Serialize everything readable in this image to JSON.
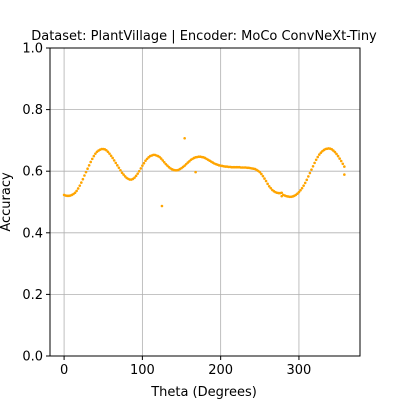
{
  "chart_data": {
    "type": "scatter",
    "title": "Dataset: PlantVillage | Encoder: MoCo ConvNeXt-Tiny",
    "xlabel": "Theta (Degrees)",
    "ylabel": "Accuracy",
    "xlim": [
      -18,
      378
    ],
    "ylim": [
      0.0,
      1.0
    ],
    "xticks": [
      0,
      100,
      200,
      300
    ],
    "yticks": [
      0.0,
      0.2,
      0.4,
      0.6,
      0.8,
      1.0
    ],
    "xtick_labels": [
      "0",
      "100",
      "200",
      "300"
    ],
    "ytick_labels": [
      "0.0",
      "0.2",
      "0.4",
      "0.6",
      "0.8",
      "1.0"
    ],
    "grid": true,
    "point_color": "#ffa500",
    "series": [
      {
        "x": [
          0,
          2,
          4,
          6,
          8,
          10,
          12,
          14,
          16,
          18,
          20,
          22,
          24,
          26,
          28,
          30,
          32,
          34,
          36,
          38,
          40,
          42,
          44,
          46,
          48,
          50,
          52,
          54,
          56,
          58,
          60,
          62,
          64,
          66,
          68,
          70,
          72,
          74,
          76,
          78,
          80,
          82,
          84,
          86,
          88,
          90,
          92,
          94,
          96,
          98,
          100,
          102,
          104,
          106,
          108,
          110,
          112,
          114,
          116,
          118,
          120,
          122,
          124,
          126,
          128,
          130,
          132,
          134,
          136,
          138,
          140,
          142,
          144,
          146,
          148,
          150,
          152,
          154,
          156,
          158,
          160,
          162,
          164,
          166,
          168,
          170,
          172,
          174,
          176,
          178,
          180,
          182,
          184,
          186,
          188,
          190,
          192,
          194,
          196,
          198,
          200,
          202,
          204,
          206,
          208,
          210,
          212,
          214,
          216,
          218,
          220,
          222,
          224,
          226,
          228,
          230,
          232,
          234,
          236,
          238,
          240,
          242,
          244,
          246,
          248,
          250,
          252,
          254,
          256,
          258,
          260,
          262,
          264,
          266,
          268,
          270,
          272,
          274,
          276,
          278,
          280,
          282,
          284,
          286,
          288,
          290,
          292,
          294,
          296,
          298,
          300,
          302,
          304,
          306,
          308,
          310,
          312,
          314,
          316,
          318,
          320,
          322,
          324,
          326,
          328,
          330,
          332,
          334,
          336,
          338,
          340,
          342,
          344,
          346,
          348,
          350,
          352,
          354,
          356,
          358,
          125,
          154,
          168,
          278,
          358
        ],
        "y": [
          0.523,
          0.521,
          0.52,
          0.52,
          0.521,
          0.523,
          0.526,
          0.53,
          0.536,
          0.544,
          0.553,
          0.563,
          0.574,
          0.586,
          0.597,
          0.608,
          0.619,
          0.63,
          0.64,
          0.649,
          0.657,
          0.663,
          0.667,
          0.67,
          0.672,
          0.672,
          0.671,
          0.668,
          0.663,
          0.657,
          0.65,
          0.643,
          0.635,
          0.627,
          0.619,
          0.611,
          0.603,
          0.595,
          0.589,
          0.583,
          0.578,
          0.575,
          0.573,
          0.573,
          0.575,
          0.579,
          0.585,
          0.592,
          0.6,
          0.609,
          0.618,
          0.626,
          0.634,
          0.64,
          0.645,
          0.649,
          0.651,
          0.653,
          0.653,
          0.651,
          0.649,
          0.646,
          0.641,
          0.635,
          0.629,
          0.623,
          0.618,
          0.613,
          0.609,
          0.606,
          0.604,
          0.603,
          0.603,
          0.604,
          0.607,
          0.61,
          0.614,
          0.618,
          0.623,
          0.628,
          0.632,
          0.637,
          0.64,
          0.643,
          0.645,
          0.646,
          0.647,
          0.647,
          0.646,
          0.645,
          0.643,
          0.64,
          0.637,
          0.634,
          0.631,
          0.628,
          0.625,
          0.623,
          0.621,
          0.619,
          0.618,
          0.617,
          0.616,
          0.615,
          0.615,
          0.614,
          0.614,
          0.613,
          0.613,
          0.613,
          0.613,
          0.613,
          0.613,
          0.612,
          0.612,
          0.612,
          0.612,
          0.611,
          0.611,
          0.61,
          0.609,
          0.608,
          0.607,
          0.604,
          0.601,
          0.597,
          0.591,
          0.584,
          0.576,
          0.568,
          0.559,
          0.551,
          0.545,
          0.539,
          0.535,
          0.532,
          0.53,
          0.529,
          0.529,
          0.53,
          0.523,
          0.521,
          0.519,
          0.518,
          0.517,
          0.517,
          0.518,
          0.52,
          0.523,
          0.527,
          0.532,
          0.538,
          0.545,
          0.553,
          0.562,
          0.572,
          0.583,
          0.594,
          0.605,
          0.616,
          0.627,
          0.637,
          0.646,
          0.654,
          0.66,
          0.665,
          0.669,
          0.672,
          0.673,
          0.674,
          0.673,
          0.671,
          0.667,
          0.662,
          0.656,
          0.649,
          0.641,
          0.633,
          0.624,
          0.615,
          0.487,
          0.707,
          0.597,
          0.519,
          0.589
        ]
      }
    ]
  }
}
